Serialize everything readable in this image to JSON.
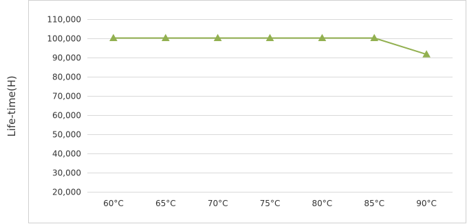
{
  "chart_data": {
    "type": "line",
    "title": "",
    "xlabel": "",
    "ylabel": "Life-time(H)",
    "categories": [
      "60°C",
      "65°C",
      "70°C",
      "75°C",
      "80°C",
      "85°C",
      "90°C"
    ],
    "series": [
      {
        "values": [
          100000,
          100000,
          100000,
          100000,
          100000,
          100000,
          91500
        ],
        "color": "#92b050",
        "marker": "triangle"
      }
    ],
    "ylim": [
      20000,
      110000
    ],
    "yticks": [
      20000,
      30000,
      40000,
      50000,
      60000,
      70000,
      80000,
      90000,
      100000,
      110000
    ],
    "ytick_labels": [
      "20,000",
      "30,000",
      "40,000",
      "50,000",
      "60,000",
      "70,000",
      "80,000",
      "90,000",
      "100,000",
      "110,000"
    ],
    "grid": true,
    "legend": "none"
  },
  "colors": {
    "gridline": "#d9d9d9",
    "frame": "#d0d0d0",
    "text": "#333333"
  }
}
